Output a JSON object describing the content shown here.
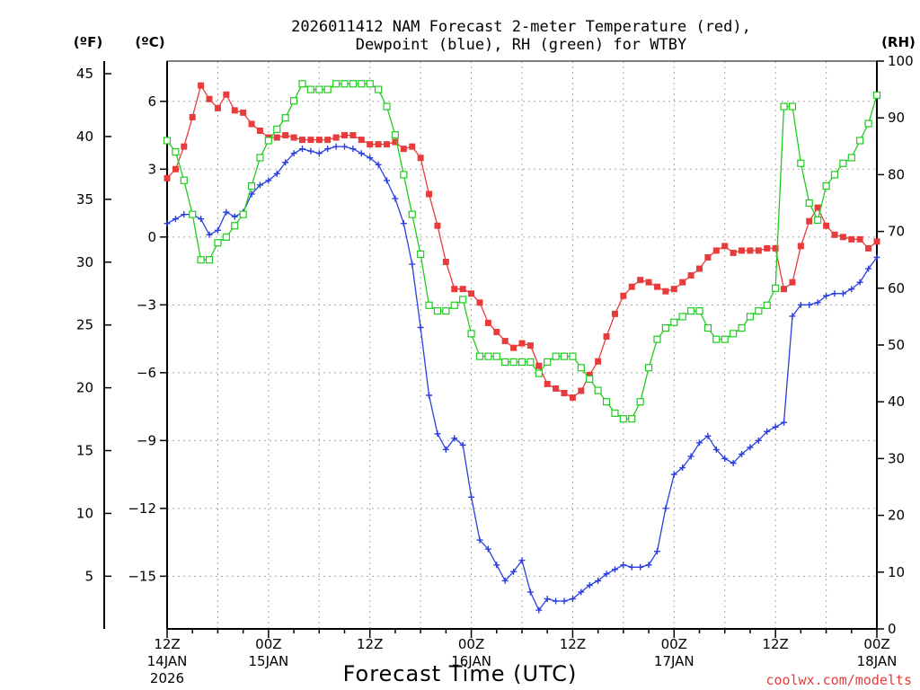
{
  "chart_data": {
    "type": "line",
    "title_line1": "2026011412 NAM Forecast 2-meter Temperature (red),",
    "title_line2": "Dewpoint (blue), RH (green) for WTBY",
    "xlabel": "Forecast Time (UTC)",
    "credit": "coolwx.com/modelts",
    "unit_f": "(ºF)",
    "unit_c": "(ºC)",
    "unit_rh": "(RH)",
    "x_range_hours": [
      0,
      84
    ],
    "ylim_c": [
      -17.33,
      7.78
    ],
    "ylim_rh": [
      0,
      100
    ],
    "c_ticks": [
      "6",
      "3",
      "0",
      "−3",
      "−6",
      "−9",
      "−12",
      "−15"
    ],
    "f_ticks": [
      "45",
      "40",
      "35",
      "30",
      "25",
      "20",
      "15",
      "10",
      "5"
    ],
    "rh_ticks": [
      "100",
      "90",
      "80",
      "70",
      "60",
      "50",
      "40",
      "30",
      "20",
      "10",
      "0"
    ],
    "x_ticks": [
      {
        "line1": "12Z",
        "line2": "14JAN",
        "line3": "2026"
      },
      {
        "line1": "00Z",
        "line2": "15JAN",
        "line3": ""
      },
      {
        "line1": "12Z",
        "line2": "",
        "line3": ""
      },
      {
        "line1": "00Z",
        "line2": "16JAN",
        "line3": ""
      },
      {
        "line1": "12Z",
        "line2": "",
        "line3": ""
      },
      {
        "line1": "00Z",
        "line2": "17JAN",
        "line3": ""
      },
      {
        "line1": "12Z",
        "line2": "",
        "line3": ""
      },
      {
        "line1": "00Z",
        "line2": "18JAN",
        "line3": ""
      }
    ],
    "colors": {
      "temperature": "#e83b3b",
      "dewpoint": "#2a3ee0",
      "rh": "#1ecc1e",
      "grid": "#a8a8a8"
    },
    "series": [
      {
        "name": "Temperature",
        "unit": "C",
        "marker": "square",
        "points": [
          [
            0,
            2.6
          ],
          [
            1,
            3.0
          ],
          [
            2,
            4.0
          ],
          [
            3,
            5.3
          ],
          [
            4,
            6.7
          ],
          [
            5,
            6.1
          ],
          [
            6,
            5.7
          ],
          [
            7,
            6.3
          ],
          [
            8,
            5.6
          ],
          [
            9,
            5.5
          ],
          [
            10,
            5.0
          ],
          [
            11,
            4.7
          ],
          [
            12,
            4.4
          ],
          [
            13,
            4.4
          ],
          [
            14,
            4.5
          ],
          [
            15,
            4.4
          ],
          [
            16,
            4.3
          ],
          [
            17,
            4.3
          ],
          [
            18,
            4.3
          ],
          [
            19,
            4.3
          ],
          [
            20,
            4.4
          ],
          [
            21,
            4.5
          ],
          [
            22,
            4.5
          ],
          [
            23,
            4.3
          ],
          [
            24,
            4.1
          ],
          [
            25,
            4.1
          ],
          [
            26,
            4.1
          ],
          [
            27,
            4.2
          ],
          [
            28,
            3.9
          ],
          [
            29,
            4.0
          ],
          [
            30,
            3.5
          ],
          [
            31,
            1.9
          ],
          [
            32,
            0.5
          ],
          [
            33,
            -1.1
          ],
          [
            34,
            -2.3
          ],
          [
            35,
            -2.3
          ],
          [
            36,
            -2.5
          ],
          [
            37,
            -2.9
          ],
          [
            38,
            -3.8
          ],
          [
            39,
            -4.2
          ],
          [
            40,
            -4.6
          ],
          [
            41,
            -4.9
          ],
          [
            42,
            -4.7
          ],
          [
            43,
            -4.8
          ],
          [
            44,
            -5.7
          ],
          [
            45,
            -6.5
          ],
          [
            46,
            -6.7
          ],
          [
            47,
            -6.9
          ],
          [
            48,
            -7.1
          ],
          [
            49,
            -6.8
          ],
          [
            50,
            -6.1
          ],
          [
            51,
            -5.5
          ],
          [
            52,
            -4.4
          ],
          [
            53,
            -3.4
          ],
          [
            54,
            -2.6
          ],
          [
            55,
            -2.2
          ],
          [
            56,
            -1.9
          ],
          [
            57,
            -2.0
          ],
          [
            58,
            -2.2
          ],
          [
            59,
            -2.4
          ],
          [
            60,
            -2.3
          ],
          [
            61,
            -2.0
          ],
          [
            62,
            -1.7
          ],
          [
            63,
            -1.4
          ],
          [
            64,
            -0.9
          ],
          [
            65,
            -0.6
          ],
          [
            66,
            -0.4
          ],
          [
            67,
            -0.7
          ],
          [
            68,
            -0.6
          ],
          [
            69,
            -0.6
          ],
          [
            70,
            -0.6
          ],
          [
            71,
            -0.5
          ],
          [
            72,
            -0.5
          ],
          [
            73,
            -2.3
          ],
          [
            74,
            -2.0
          ],
          [
            75,
            -0.4
          ],
          [
            76,
            0.7
          ],
          [
            77,
            1.3
          ],
          [
            78,
            0.5
          ],
          [
            79,
            0.1
          ],
          [
            80,
            0.0
          ],
          [
            81,
            -0.1
          ],
          [
            82,
            -0.1
          ],
          [
            83,
            -0.5
          ],
          [
            84,
            -0.2
          ]
        ]
      },
      {
        "name": "Dewpoint",
        "unit": "C",
        "marker": "plus",
        "points": [
          [
            0,
            0.6
          ],
          [
            1,
            0.8
          ],
          [
            2,
            1.0
          ],
          [
            3,
            1.0
          ],
          [
            4,
            0.8
          ],
          [
            5,
            0.1
          ],
          [
            6,
            0.3
          ],
          [
            7,
            1.1
          ],
          [
            8,
            0.9
          ],
          [
            9,
            1.1
          ],
          [
            10,
            1.9
          ],
          [
            11,
            2.3
          ],
          [
            12,
            2.5
          ],
          [
            13,
            2.8
          ],
          [
            14,
            3.3
          ],
          [
            15,
            3.7
          ],
          [
            16,
            3.9
          ],
          [
            17,
            3.8
          ],
          [
            18,
            3.7
          ],
          [
            19,
            3.9
          ],
          [
            20,
            4.0
          ],
          [
            21,
            4.0
          ],
          [
            22,
            3.9
          ],
          [
            23,
            3.7
          ],
          [
            24,
            3.5
          ],
          [
            25,
            3.2
          ],
          [
            26,
            2.5
          ],
          [
            27,
            1.7
          ],
          [
            28,
            0.6
          ],
          [
            29,
            -1.2
          ],
          [
            30,
            -4.0
          ],
          [
            31,
            -7.0
          ],
          [
            32,
            -8.7
          ],
          [
            33,
            -9.4
          ],
          [
            34,
            -8.9
          ],
          [
            35,
            -9.2
          ],
          [
            36,
            -11.5
          ],
          [
            37,
            -13.4
          ],
          [
            38,
            -13.8
          ],
          [
            39,
            -14.5
          ],
          [
            40,
            -15.2
          ],
          [
            41,
            -14.8
          ],
          [
            42,
            -14.3
          ],
          [
            43,
            -15.7
          ],
          [
            44,
            -16.5
          ],
          [
            45,
            -16.0
          ],
          [
            46,
            -16.1
          ],
          [
            47,
            -16.1
          ],
          [
            48,
            -16.0
          ],
          [
            49,
            -15.7
          ],
          [
            50,
            -15.4
          ],
          [
            51,
            -15.2
          ],
          [
            52,
            -14.9
          ],
          [
            53,
            -14.7
          ],
          [
            54,
            -14.5
          ],
          [
            55,
            -14.6
          ],
          [
            56,
            -14.6
          ],
          [
            57,
            -14.5
          ],
          [
            58,
            -13.9
          ],
          [
            59,
            -12.0
          ],
          [
            60,
            -10.5
          ],
          [
            61,
            -10.2
          ],
          [
            62,
            -9.7
          ],
          [
            63,
            -9.1
          ],
          [
            64,
            -8.8
          ],
          [
            65,
            -9.4
          ],
          [
            66,
            -9.8
          ],
          [
            67,
            -10.0
          ],
          [
            68,
            -9.6
          ],
          [
            69,
            -9.3
          ],
          [
            70,
            -9.0
          ],
          [
            71,
            -8.6
          ],
          [
            72,
            -8.4
          ],
          [
            73,
            -8.2
          ],
          [
            74,
            -3.5
          ],
          [
            75,
            -3.0
          ],
          [
            76,
            -3.0
          ],
          [
            77,
            -2.9
          ],
          [
            78,
            -2.6
          ],
          [
            79,
            -2.5
          ],
          [
            80,
            -2.5
          ],
          [
            81,
            -2.3
          ],
          [
            82,
            -2.0
          ],
          [
            83,
            -1.4
          ],
          [
            84,
            -0.9
          ]
        ]
      },
      {
        "name": "RH",
        "unit": "%",
        "marker": "open-square",
        "points": [
          [
            0,
            86
          ],
          [
            1,
            84
          ],
          [
            2,
            79
          ],
          [
            3,
            73
          ],
          [
            4,
            65
          ],
          [
            5,
            65
          ],
          [
            6,
            68
          ],
          [
            7,
            69
          ],
          [
            8,
            71
          ],
          [
            9,
            73
          ],
          [
            10,
            78
          ],
          [
            11,
            83
          ],
          [
            12,
            86
          ],
          [
            13,
            88
          ],
          [
            14,
            90
          ],
          [
            15,
            93
          ],
          [
            16,
            96
          ],
          [
            17,
            95
          ],
          [
            18,
            95
          ],
          [
            19,
            95
          ],
          [
            20,
            96
          ],
          [
            21,
            96
          ],
          [
            22,
            96
          ],
          [
            23,
            96
          ],
          [
            24,
            96
          ],
          [
            25,
            95
          ],
          [
            26,
            92
          ],
          [
            27,
            87
          ],
          [
            28,
            80
          ],
          [
            29,
            73
          ],
          [
            30,
            66
          ],
          [
            31,
            57
          ],
          [
            32,
            56
          ],
          [
            33,
            56
          ],
          [
            34,
            57
          ],
          [
            35,
            58
          ],
          [
            36,
            52
          ],
          [
            37,
            48
          ],
          [
            38,
            48
          ],
          [
            39,
            48
          ],
          [
            40,
            47
          ],
          [
            41,
            47
          ],
          [
            42,
            47
          ],
          [
            43,
            47
          ],
          [
            44,
            45
          ],
          [
            45,
            47
          ],
          [
            46,
            48
          ],
          [
            47,
            48
          ],
          [
            48,
            48
          ],
          [
            49,
            46
          ],
          [
            50,
            44
          ],
          [
            51,
            42
          ],
          [
            52,
            40
          ],
          [
            53,
            38
          ],
          [
            54,
            37
          ],
          [
            55,
            37
          ],
          [
            56,
            40
          ],
          [
            57,
            46
          ],
          [
            58,
            51
          ],
          [
            59,
            53
          ],
          [
            60,
            54
          ],
          [
            61,
            55
          ],
          [
            62,
            56
          ],
          [
            63,
            56
          ],
          [
            64,
            53
          ],
          [
            65,
            51
          ],
          [
            66,
            51
          ],
          [
            67,
            52
          ],
          [
            68,
            53
          ],
          [
            69,
            55
          ],
          [
            70,
            56
          ],
          [
            71,
            57
          ],
          [
            72,
            60
          ],
          [
            73,
            92
          ],
          [
            74,
            92
          ],
          [
            75,
            82
          ],
          [
            76,
            75
          ],
          [
            77,
            72
          ],
          [
            78,
            78
          ],
          [
            79,
            80
          ],
          [
            80,
            82
          ],
          [
            81,
            83
          ],
          [
            82,
            86
          ],
          [
            83,
            89
          ],
          [
            84,
            94
          ]
        ]
      }
    ]
  }
}
